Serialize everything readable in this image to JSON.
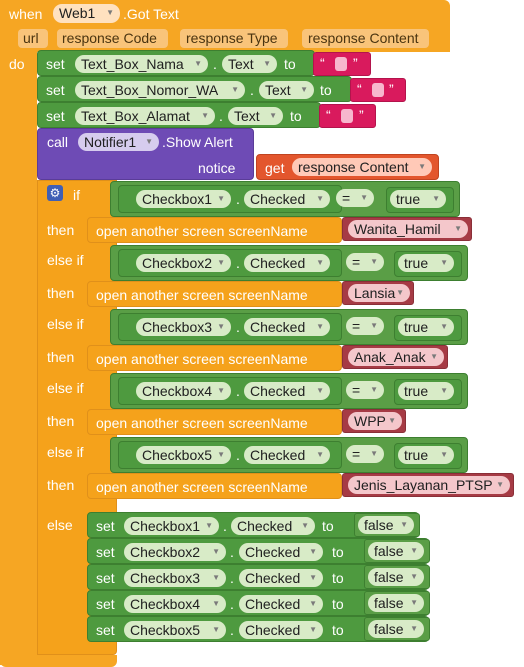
{
  "event": {
    "when": "when",
    "component": "Web1",
    "event_name": ".Got Text",
    "do": "do"
  },
  "params": [
    "url",
    "response Code",
    "response Type",
    "response Content"
  ],
  "set_textboxes": [
    {
      "set": "set",
      "component": "Text_Box_Nama",
      "prop": "Text",
      "to": "to"
    },
    {
      "set": "set",
      "component": "Text_Box_Nomor_WA",
      "prop": "Text",
      "to": "to"
    },
    {
      "set": "set",
      "component": "Text_Box_Alamat",
      "prop": "Text",
      "to": "to"
    }
  ],
  "quote_open": "“",
  "quote_close": "”",
  "dot": ".",
  "notifier": {
    "call": "call",
    "component": "Notifier1",
    "method": ".Show Alert",
    "notice": "notice",
    "get": "get",
    "get_var": "response Content"
  },
  "if_block": {
    "if": "if",
    "then": "then",
    "else_if": "else if",
    "else": "else"
  },
  "branches": [
    {
      "checkbox": "Checkbox1",
      "prop": "Checked",
      "op": "=",
      "value": "true",
      "action": "open another screen  screenName",
      "screen": "Wanita_Hamil"
    },
    {
      "checkbox": "Checkbox2",
      "prop": "Checked",
      "op": "=",
      "value": "true",
      "action": "open another screen  screenName",
      "screen": "Lansia"
    },
    {
      "checkbox": "Checkbox3",
      "prop": "Checked",
      "op": "=",
      "value": "true",
      "action": "open another screen  screenName",
      "screen": "Anak_Anak"
    },
    {
      "checkbox": "Checkbox4",
      "prop": "Checked",
      "op": "=",
      "value": "true",
      "action": "open another screen  screenName",
      "screen": "WPP"
    },
    {
      "checkbox": "Checkbox5",
      "prop": "Checked",
      "op": "=",
      "value": "true",
      "action": "open another screen  screenName",
      "screen": "Jenis_Layanan_PTSP"
    }
  ],
  "else_sets": [
    {
      "set": "set",
      "checkbox": "Checkbox1",
      "prop": "Checked",
      "to": "to",
      "value": "false"
    },
    {
      "set": "set",
      "checkbox": "Checkbox2",
      "prop": "Checked",
      "to": "to",
      "value": "false"
    },
    {
      "set": "set",
      "checkbox": "Checkbox3",
      "prop": "Checked",
      "to": "to",
      "value": "false"
    },
    {
      "set": "set",
      "checkbox": "Checkbox4",
      "prop": "Checked",
      "to": "to",
      "value": "false"
    },
    {
      "set": "set",
      "checkbox": "Checkbox5",
      "prop": "Checked",
      "to": "to",
      "value": "false"
    }
  ]
}
